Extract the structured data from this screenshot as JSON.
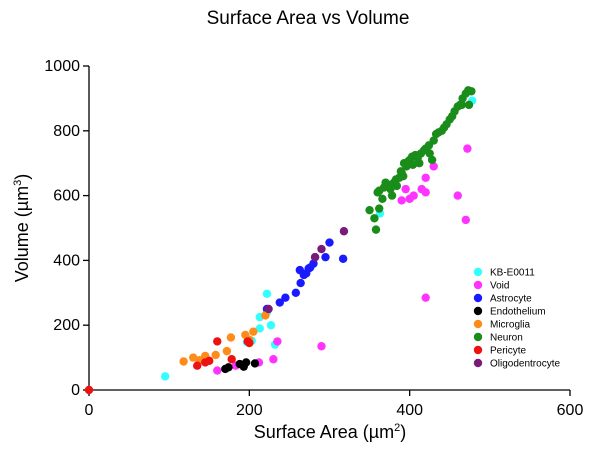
{
  "chart_data": {
    "type": "scatter",
    "title": "Surface Area vs Volume",
    "xlabel": {
      "main": "Surface Area (µm",
      "sup": "2",
      "end": ")"
    },
    "ylabel": {
      "main": "Volume (µm",
      "sup": "3",
      "end": ")"
    },
    "xlim": [
      0,
      600
    ],
    "ylim": [
      0,
      1000
    ],
    "xticks": [
      0,
      200,
      400,
      600
    ],
    "yticks": [
      0,
      200,
      400,
      600,
      800,
      1000
    ],
    "grid": false,
    "legend_position": "bottom-right",
    "series": [
      {
        "name": "KB-E0011",
        "color": "#33ffff",
        "points": [
          [
            95,
            42
          ],
          [
            197,
            148
          ],
          [
            203,
            152
          ],
          [
            213,
            190
          ],
          [
            213,
            225
          ],
          [
            222,
            240
          ],
          [
            222,
            297
          ],
          [
            227,
            200
          ],
          [
            232,
            140
          ],
          [
            363,
            545
          ],
          [
            478,
            893
          ]
        ]
      },
      {
        "name": "Void",
        "color": "#ff33ff",
        "points": [
          [
            160,
            60
          ],
          [
            183,
            75
          ],
          [
            212,
            85
          ],
          [
            230,
            95
          ],
          [
            235,
            150
          ],
          [
            290,
            135
          ],
          [
            390,
            585
          ],
          [
            395,
            620
          ],
          [
            400,
            590
          ],
          [
            405,
            600
          ],
          [
            415,
            620
          ],
          [
            420,
            655
          ],
          [
            420,
            285
          ],
          [
            420,
            610
          ],
          [
            430,
            690
          ],
          [
            460,
            600
          ],
          [
            470,
            525
          ],
          [
            472,
            745
          ]
        ]
      },
      {
        "name": "Astrocyte",
        "color": "#1a1aff",
        "points": [
          [
            222,
            250
          ],
          [
            238,
            270
          ],
          [
            245,
            285
          ],
          [
            258,
            300
          ],
          [
            264,
            330
          ],
          [
            263,
            370
          ],
          [
            268,
            355
          ],
          [
            271,
            360
          ],
          [
            274,
            375
          ],
          [
            276,
            378
          ],
          [
            280,
            390
          ],
          [
            282,
            410
          ],
          [
            300,
            455
          ],
          [
            295,
            410
          ],
          [
            317,
            405
          ]
        ]
      },
      {
        "name": "Endothelium",
        "color": "#000000",
        "points": [
          [
            170,
            65
          ],
          [
            174,
            70
          ],
          [
            188,
            80
          ],
          [
            193,
            72
          ],
          [
            196,
            85
          ],
          [
            207,
            82
          ]
        ]
      },
      {
        "name": "Microglia",
        "color": "#ff8c1a",
        "points": [
          [
            118,
            88
          ],
          [
            130,
            100
          ],
          [
            138,
            92
          ],
          [
            145,
            105
          ],
          [
            158,
            108
          ],
          [
            172,
            120
          ],
          [
            177,
            162
          ],
          [
            195,
            170
          ],
          [
            200,
            155
          ],
          [
            205,
            180
          ],
          [
            220,
            230
          ]
        ]
      },
      {
        "name": "Neuron",
        "color": "#1a8c1a",
        "points": [
          [
            350,
            555
          ],
          [
            356,
            530
          ],
          [
            362,
            560
          ],
          [
            358,
            495
          ],
          [
            366,
            590
          ],
          [
            362,
            615
          ],
          [
            368,
            625
          ],
          [
            376,
            620
          ],
          [
            370,
            640
          ],
          [
            378,
            635
          ],
          [
            382,
            645
          ],
          [
            383,
            650
          ],
          [
            384,
            630
          ],
          [
            387,
            655
          ],
          [
            390,
            670
          ],
          [
            392,
            660
          ],
          [
            389,
            675
          ],
          [
            396,
            690
          ],
          [
            393,
            700
          ],
          [
            398,
            705
          ],
          [
            400,
            710
          ],
          [
            404,
            695
          ],
          [
            403,
            720
          ],
          [
            407,
            725
          ],
          [
            410,
            715
          ],
          [
            412,
            700
          ],
          [
            414,
            730
          ],
          [
            418,
            740
          ],
          [
            420,
            745
          ],
          [
            424,
            755
          ],
          [
            425,
            730
          ],
          [
            428,
            710
          ],
          [
            430,
            770
          ],
          [
            433,
            790
          ],
          [
            436,
            795
          ],
          [
            440,
            800
          ],
          [
            443,
            810
          ],
          [
            446,
            820
          ],
          [
            450,
            835
          ],
          [
            453,
            845
          ],
          [
            456,
            860
          ],
          [
            460,
            875
          ],
          [
            463,
            880
          ],
          [
            466,
            900
          ],
          [
            470,
            915
          ],
          [
            473,
            925
          ],
          [
            477,
            922
          ],
          [
            474,
            880
          ],
          [
            465,
            880
          ],
          [
            378,
            600
          ],
          [
            360,
            610
          ]
        ]
      },
      {
        "name": "Pericyte",
        "color": "#ee1111",
        "points": [
          [
            0,
            0
          ],
          [
            135,
            75
          ],
          [
            145,
            85
          ],
          [
            150,
            90
          ],
          [
            160,
            150
          ],
          [
            178,
            95
          ],
          [
            198,
            150
          ],
          [
            200,
            145
          ]
        ]
      },
      {
        "name": "Oligodentrocyte",
        "color": "#7a1a7a",
        "points": [
          [
            224,
            250
          ],
          [
            282,
            410
          ],
          [
            290,
            435
          ],
          [
            318,
            490
          ]
        ]
      }
    ]
  }
}
